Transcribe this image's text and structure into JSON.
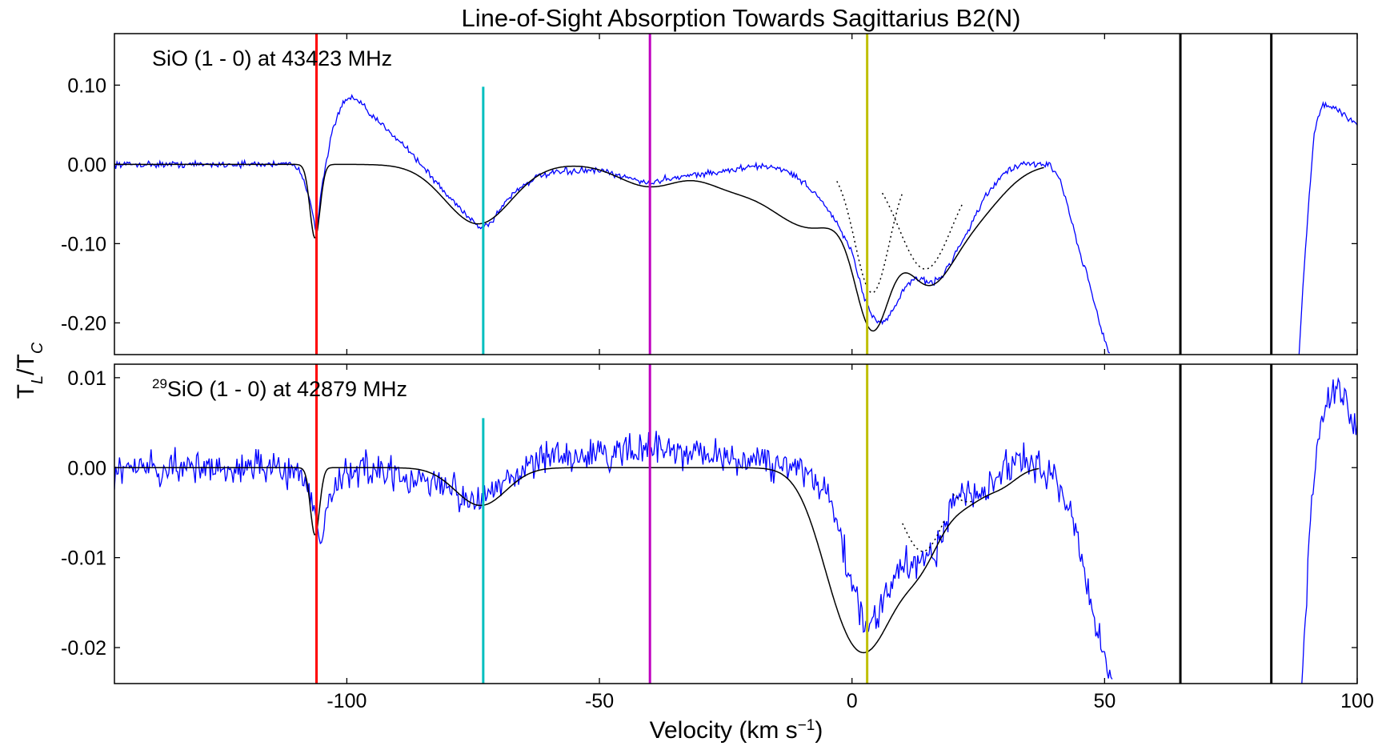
{
  "chart_data": {
    "type": "line",
    "title": "Line-of-Sight Absorption Towards Sagittarius B2(N)",
    "xlabel": {
      "text": "Velocity (km s",
      "sup": "−1",
      "close": ")"
    },
    "ylabel": {
      "base": "T",
      "sub1": "L",
      "sep": "/T",
      "sub2": "C"
    },
    "xlim": [
      -146,
      100
    ],
    "x_ticks": [
      -100,
      -50,
      0,
      50,
      100
    ],
    "x_tick_labels": [
      "-100",
      "-50",
      "0",
      "50",
      "100"
    ],
    "grid": false,
    "markers": [
      {
        "x": -106,
        "color": "#ff0000"
      },
      {
        "x": -73,
        "color": "#00bfbf"
      },
      {
        "x": -40,
        "color": "#bf00bf"
      },
      {
        "x": 3,
        "color": "#bfbf00"
      },
      {
        "x": 65,
        "color": "#000000"
      },
      {
        "x": 83,
        "color": "#000000"
      }
    ],
    "panels": [
      {
        "label": {
          "sup": "",
          "text": "SiO (1 - 0) at 43423 MHz"
        },
        "ylim": [
          -0.24,
          0.165
        ],
        "y_ticks": [
          0.1,
          0.0,
          -0.1,
          -0.2
        ],
        "y_tick_labels": [
          "0.10",
          "0.00",
          "-0.10",
          "-0.20"
        ],
        "marker_spans": [
          [
            -0.24,
            0.165
          ],
          [
            -0.24,
            0.098
          ],
          [
            -0.24,
            0.165
          ],
          [
            -0.24,
            0.165
          ],
          [
            -0.24,
            0.165
          ],
          [
            -0.24,
            0.165
          ]
        ],
        "data_series": {
          "name": "observed",
          "color": "#0000ff",
          "noise": 0.006,
          "x_ranges": [
            [
              -146,
              51
            ],
            [
              88.5,
              100
            ]
          ],
          "x": [
            -146,
            -115,
            -112,
            -109,
            -107,
            -106,
            -105,
            -103,
            -101,
            -99,
            -97,
            -95,
            -92,
            -88,
            -84,
            -80,
            -76,
            -74,
            -73,
            -71,
            -69,
            -66,
            -62,
            -58,
            -54,
            -50,
            -46,
            -42,
            -40,
            -38,
            -34,
            -30,
            -26,
            -22,
            -18,
            -14,
            -10,
            -6,
            -3,
            0,
            2,
            4,
            6,
            8,
            10,
            12,
            14,
            16,
            18,
            22,
            26,
            30,
            34,
            37,
            39,
            41,
            43,
            45,
            47,
            49,
            51,
            88.5,
            89.5,
            90.5,
            91.5,
            93,
            96,
            100
          ],
          "y": [
            0.0,
            0.0,
            0.003,
            -0.01,
            -0.05,
            -0.09,
            -0.03,
            0.04,
            0.075,
            0.085,
            0.075,
            0.06,
            0.045,
            0.02,
            -0.01,
            -0.04,
            -0.065,
            -0.078,
            -0.08,
            -0.07,
            -0.05,
            -0.03,
            -0.015,
            -0.01,
            -0.008,
            -0.008,
            -0.015,
            -0.02,
            -0.025,
            -0.02,
            -0.015,
            -0.012,
            -0.01,
            -0.005,
            -0.002,
            -0.005,
            -0.02,
            -0.045,
            -0.075,
            -0.11,
            -0.16,
            -0.195,
            -0.2,
            -0.185,
            -0.16,
            -0.145,
            -0.145,
            -0.15,
            -0.14,
            -0.095,
            -0.045,
            -0.01,
            0.0,
            0.0,
            0.0,
            -0.015,
            -0.06,
            -0.11,
            -0.15,
            -0.2,
            -0.24,
            -0.24,
            -0.13,
            -0.04,
            0.04,
            0.075,
            0.07,
            0.05
          ]
        },
        "fit_components": [
          {
            "amp": -0.093,
            "center": -106.3,
            "sigma": 1.0
          },
          {
            "amp": -0.075,
            "center": -74,
            "sigma": 6.5
          },
          {
            "amp": -0.028,
            "center": -40,
            "sigma": 6.0
          },
          {
            "amp": -0.018,
            "center": -25,
            "sigma": 5.0
          },
          {
            "amp": -0.08,
            "center": -8,
            "sigma": 9.0
          },
          {
            "amp": -0.16,
            "center": 4,
            "sigma": 3.4
          },
          {
            "amp": -0.13,
            "center": 14.5,
            "sigma": 5.2
          },
          {
            "amp": -0.06,
            "center": 24,
            "sigma": 6.0
          }
        ],
        "fit_range": [
          -146,
          38
        ],
        "dotted_components": [
          {
            "amp": -0.16,
            "center": 4,
            "sigma": 3.4,
            "offset": -0.002,
            "range": [
              -3,
              10
            ]
          },
          {
            "amp": -0.13,
            "center": 14.5,
            "sigma": 5.2,
            "offset": -0.002,
            "range": [
              6,
              22
            ]
          }
        ]
      },
      {
        "label": {
          "sup": "29",
          "text": "SiO (1 - 0) at 42879 MHz"
        },
        "ylim": [
          -0.024,
          0.0115
        ],
        "y_ticks": [
          0.01,
          0.0,
          -0.01,
          -0.02
        ],
        "y_tick_labels": [
          "0.01",
          "0.00",
          "-0.01",
          "-0.02"
        ],
        "marker_spans": [
          [
            -0.024,
            0.0115
          ],
          [
            -0.024,
            0.0055
          ],
          [
            -0.024,
            0.0115
          ],
          [
            -0.024,
            0.0115
          ],
          [
            -0.024,
            0.0115
          ],
          [
            -0.024,
            0.0115
          ]
        ],
        "data_series": {
          "name": "observed",
          "color": "#0000ff",
          "noise": 0.0028,
          "x_ranges": [
            [
              -146,
              51.5
            ],
            [
              89,
              100
            ]
          ],
          "x": [
            -146,
            -110,
            -108,
            -106,
            -105,
            -104,
            -100,
            -80,
            -74,
            -72,
            -68,
            -60,
            -40,
            -20,
            -10,
            -5,
            -2,
            0,
            2,
            4,
            6,
            8,
            10,
            12,
            14,
            16,
            18,
            20,
            22,
            26,
            30,
            35,
            40,
            44,
            46,
            48,
            50,
            51.5,
            89,
            90,
            91,
            93,
            96,
            98,
            100
          ],
          "y": [
            0.0,
            0.0,
            -0.002,
            -0.006,
            -0.009,
            -0.004,
            0.0,
            -0.002,
            -0.004,
            -0.003,
            -0.001,
            0.001,
            0.002,
            0.001,
            0.0,
            -0.003,
            -0.008,
            -0.013,
            -0.017,
            -0.017,
            -0.015,
            -0.013,
            -0.011,
            -0.0105,
            -0.0105,
            -0.01,
            -0.007,
            -0.004,
            -0.003,
            -0.003,
            0.0,
            0.001,
            -0.001,
            -0.006,
            -0.012,
            -0.016,
            -0.021,
            -0.024,
            -0.024,
            -0.014,
            -0.004,
            0.006,
            0.009,
            0.007,
            0.004
          ]
        },
        "fit_components": [
          {
            "amp": -0.0075,
            "center": -106.3,
            "sigma": 0.9
          },
          {
            "amp": -0.0042,
            "center": -73.5,
            "sigma": 5.0
          },
          {
            "amp": -0.012,
            "center": -2,
            "sigma": 5.0
          },
          {
            "amp": -0.014,
            "center": 5,
            "sigma": 5.0
          },
          {
            "amp": -0.0085,
            "center": 14,
            "sigma": 4.2
          },
          {
            "amp": -0.0034,
            "center": 23,
            "sigma": 4.0
          },
          {
            "amp": -0.0015,
            "center": 30,
            "sigma": 3.0
          }
        ],
        "fit_range": [
          -146,
          37
        ],
        "dotted_components": [
          {
            "amp": -0.0085,
            "center": 14,
            "sigma": 4.2,
            "offset": -0.0008,
            "range": [
              10,
              18.5
            ]
          },
          {
            "amp": -0.0034,
            "center": 23,
            "sigma": 4.0,
            "offset": -0.0004,
            "range": [
              20,
              24
            ]
          }
        ]
      }
    ]
  }
}
